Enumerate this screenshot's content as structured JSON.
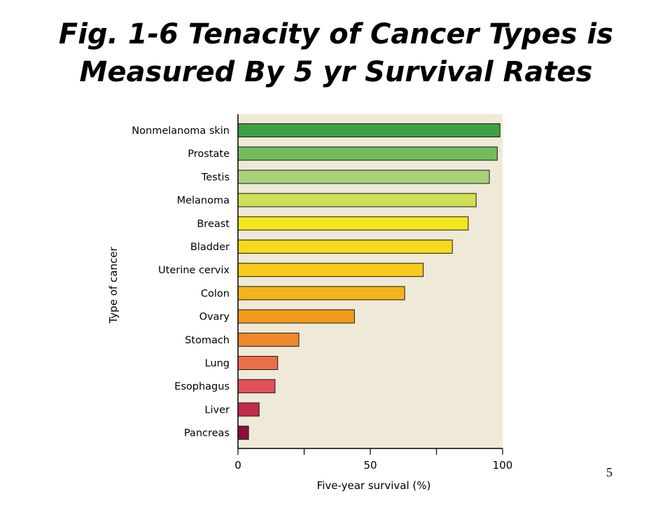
{
  "slide": {
    "title_line1": "Fig. 1-6 Tenacity of Cancer Types is",
    "title_line2": "Measured By 5 yr Survival Rates",
    "page_number": "5"
  },
  "chart_data": {
    "type": "bar",
    "orientation": "horizontal",
    "title": "",
    "xlabel": "Five-year survival (%)",
    "ylabel": "Type of cancer",
    "xlim": [
      0,
      100
    ],
    "x_ticks": [
      0,
      50,
      100
    ],
    "x_minor_ticks": [
      25,
      75
    ],
    "grid": false,
    "background_color": "#efead7",
    "categories": [
      "Nonmelanoma skin",
      "Prostate",
      "Testis",
      "Melanoma",
      "Breast",
      "Bladder",
      "Uterine cervix",
      "Colon",
      "Ovary",
      "Stomach",
      "Lung",
      "Esophagus",
      "Liver",
      "Pancreas"
    ],
    "values": [
      99,
      98,
      95,
      90,
      87,
      81,
      70,
      63,
      44,
      23,
      15,
      14,
      8,
      4
    ],
    "colors": [
      "#3da044",
      "#72bc5c",
      "#a6d27a",
      "#cfdf55",
      "#f3e51e",
      "#f6d81e",
      "#f6c91a",
      "#f5b31a",
      "#f29a1c",
      "#ef8a2a",
      "#ee6f4b",
      "#e0505a",
      "#c22d4a",
      "#8d0f35"
    ]
  }
}
